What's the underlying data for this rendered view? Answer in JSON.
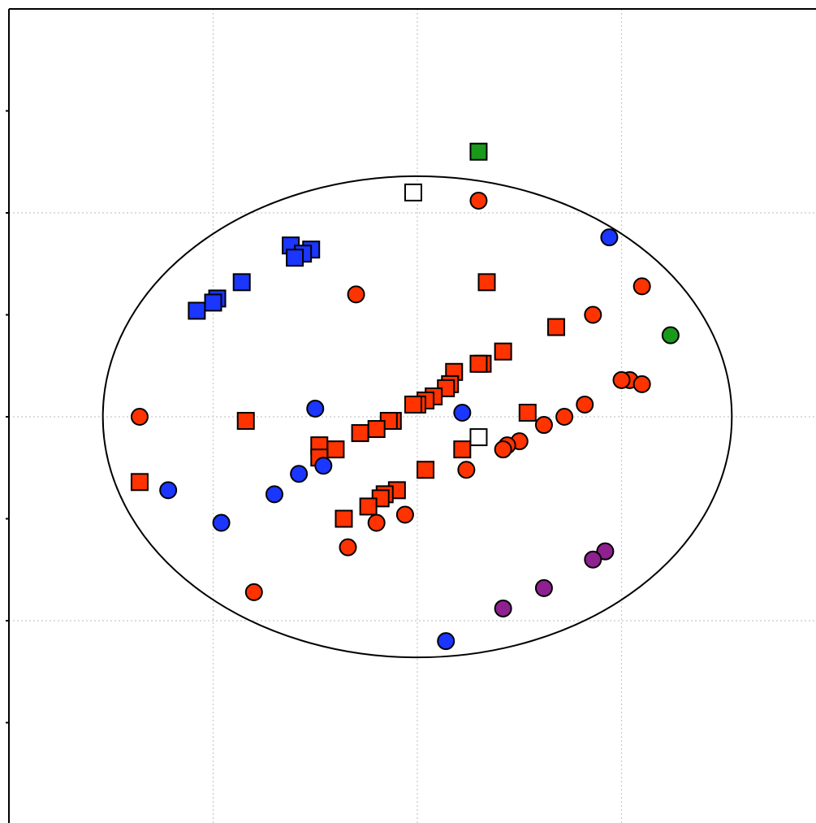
{
  "chart_data": {
    "type": "scatter",
    "title": "",
    "xlabel": "",
    "ylabel": "",
    "xlim": [
      -1,
      1
    ],
    "ylim": [
      -1,
      1
    ],
    "grid": true,
    "x_gridlines": [
      -0.5,
      0,
      0.5
    ],
    "y_gridlines": [
      -0.5,
      0,
      0.5
    ],
    "y_ticks": [
      -0.75,
      -0.5,
      -0.25,
      0,
      0.25,
      0.5,
      0.75
    ],
    "confidence_ellipse": {
      "center": [
        0,
        0
      ],
      "semi_axis_x": 0.77,
      "semi_axis_y": 0.59
    },
    "colors": {
      "red": "#ff3300",
      "blue": "#1a36ff",
      "green": "#1a9a1a",
      "purple": "#8e2090",
      "white": "#ffffff"
    },
    "points": [
      {
        "x": 0.15,
        "y": 0.65,
        "shape": "square",
        "color": "green"
      },
      {
        "x": -0.01,
        "y": 0.55,
        "shape": "square",
        "color": "white"
      },
      {
        "x": 0.15,
        "y": 0.53,
        "shape": "circle",
        "color": "red"
      },
      {
        "x": 0.47,
        "y": 0.44,
        "shape": "circle",
        "color": "blue"
      },
      {
        "x": -0.31,
        "y": 0.42,
        "shape": "square",
        "color": "blue"
      },
      {
        "x": -0.26,
        "y": 0.41,
        "shape": "square",
        "color": "blue"
      },
      {
        "x": -0.28,
        "y": 0.4,
        "shape": "square",
        "color": "blue"
      },
      {
        "x": -0.3,
        "y": 0.39,
        "shape": "square",
        "color": "blue"
      },
      {
        "x": -0.43,
        "y": 0.33,
        "shape": "square",
        "color": "blue"
      },
      {
        "x": 0.17,
        "y": 0.33,
        "shape": "square",
        "color": "red"
      },
      {
        "x": 0.55,
        "y": 0.32,
        "shape": "circle",
        "color": "red"
      },
      {
        "x": -0.49,
        "y": 0.29,
        "shape": "square",
        "color": "blue"
      },
      {
        "x": -0.5,
        "y": 0.28,
        "shape": "square",
        "color": "blue"
      },
      {
        "x": -0.15,
        "y": 0.3,
        "shape": "circle",
        "color": "red"
      },
      {
        "x": -0.54,
        "y": 0.26,
        "shape": "square",
        "color": "blue"
      },
      {
        "x": 0.43,
        "y": 0.25,
        "shape": "circle",
        "color": "red"
      },
      {
        "x": 0.34,
        "y": 0.22,
        "shape": "square",
        "color": "red"
      },
      {
        "x": 0.62,
        "y": 0.2,
        "shape": "circle",
        "color": "green"
      },
      {
        "x": 0.21,
        "y": 0.16,
        "shape": "square",
        "color": "red"
      },
      {
        "x": 0.16,
        "y": 0.13,
        "shape": "square",
        "color": "red"
      },
      {
        "x": 0.15,
        "y": 0.13,
        "shape": "square",
        "color": "red"
      },
      {
        "x": 0.09,
        "y": 0.11,
        "shape": "square",
        "color": "red"
      },
      {
        "x": 0.52,
        "y": 0.09,
        "shape": "circle",
        "color": "red"
      },
      {
        "x": 0.5,
        "y": 0.09,
        "shape": "circle",
        "color": "red"
      },
      {
        "x": 0.55,
        "y": 0.08,
        "shape": "circle",
        "color": "red"
      },
      {
        "x": 0.08,
        "y": 0.08,
        "shape": "square",
        "color": "red"
      },
      {
        "x": 0.07,
        "y": 0.07,
        "shape": "square",
        "color": "red"
      },
      {
        "x": 0.04,
        "y": 0.05,
        "shape": "square",
        "color": "red"
      },
      {
        "x": 0.02,
        "y": 0.04,
        "shape": "square",
        "color": "red"
      },
      {
        "x": 0.0,
        "y": 0.03,
        "shape": "square",
        "color": "red"
      },
      {
        "x": -0.01,
        "y": 0.03,
        "shape": "square",
        "color": "red"
      },
      {
        "x": 0.41,
        "y": 0.03,
        "shape": "circle",
        "color": "red"
      },
      {
        "x": -0.25,
        "y": 0.02,
        "shape": "circle",
        "color": "blue"
      },
      {
        "x": 0.11,
        "y": 0.01,
        "shape": "circle",
        "color": "blue"
      },
      {
        "x": 0.27,
        "y": 0.01,
        "shape": "square",
        "color": "red"
      },
      {
        "x": -0.68,
        "y": 0.0,
        "shape": "circle",
        "color": "red"
      },
      {
        "x": 0.36,
        "y": 0.0,
        "shape": "circle",
        "color": "red"
      },
      {
        "x": -0.06,
        "y": -0.01,
        "shape": "square",
        "color": "red"
      },
      {
        "x": -0.07,
        "y": -0.01,
        "shape": "square",
        "color": "red"
      },
      {
        "x": -0.42,
        "y": -0.01,
        "shape": "square",
        "color": "red"
      },
      {
        "x": 0.31,
        "y": -0.02,
        "shape": "circle",
        "color": "red"
      },
      {
        "x": -0.1,
        "y": -0.03,
        "shape": "square",
        "color": "red"
      },
      {
        "x": -0.14,
        "y": -0.04,
        "shape": "square",
        "color": "red"
      },
      {
        "x": 0.15,
        "y": -0.05,
        "shape": "square",
        "color": "white"
      },
      {
        "x": 0.25,
        "y": -0.06,
        "shape": "circle",
        "color": "red"
      },
      {
        "x": 0.22,
        "y": -0.07,
        "shape": "circle",
        "color": "red"
      },
      {
        "x": 0.21,
        "y": -0.08,
        "shape": "circle",
        "color": "red"
      },
      {
        "x": -0.24,
        "y": -0.07,
        "shape": "square",
        "color": "red"
      },
      {
        "x": -0.2,
        "y": -0.08,
        "shape": "square",
        "color": "red"
      },
      {
        "x": 0.11,
        "y": -0.08,
        "shape": "square",
        "color": "red"
      },
      {
        "x": -0.24,
        "y": -0.1,
        "shape": "square",
        "color": "red"
      },
      {
        "x": -0.23,
        "y": -0.12,
        "shape": "circle",
        "color": "blue"
      },
      {
        "x": -0.29,
        "y": -0.14,
        "shape": "circle",
        "color": "blue"
      },
      {
        "x": 0.02,
        "y": -0.13,
        "shape": "square",
        "color": "red"
      },
      {
        "x": 0.12,
        "y": -0.13,
        "shape": "circle",
        "color": "red"
      },
      {
        "x": -0.68,
        "y": -0.16,
        "shape": "square",
        "color": "red"
      },
      {
        "x": -0.61,
        "y": -0.18,
        "shape": "circle",
        "color": "blue"
      },
      {
        "x": -0.05,
        "y": -0.18,
        "shape": "square",
        "color": "red"
      },
      {
        "x": -0.08,
        "y": -0.19,
        "shape": "square",
        "color": "red"
      },
      {
        "x": -0.09,
        "y": -0.2,
        "shape": "square",
        "color": "red"
      },
      {
        "x": -0.35,
        "y": -0.19,
        "shape": "circle",
        "color": "blue"
      },
      {
        "x": -0.12,
        "y": -0.22,
        "shape": "square",
        "color": "red"
      },
      {
        "x": -0.18,
        "y": -0.25,
        "shape": "square",
        "color": "red"
      },
      {
        "x": -0.03,
        "y": -0.24,
        "shape": "circle",
        "color": "red"
      },
      {
        "x": -0.1,
        "y": -0.26,
        "shape": "circle",
        "color": "red"
      },
      {
        "x": -0.48,
        "y": -0.26,
        "shape": "circle",
        "color": "blue"
      },
      {
        "x": -0.17,
        "y": -0.32,
        "shape": "circle",
        "color": "red"
      },
      {
        "x": 0.46,
        "y": -0.33,
        "shape": "circle",
        "color": "purple"
      },
      {
        "x": 0.43,
        "y": -0.35,
        "shape": "circle",
        "color": "purple"
      },
      {
        "x": 0.31,
        "y": -0.42,
        "shape": "circle",
        "color": "purple"
      },
      {
        "x": -0.4,
        "y": -0.43,
        "shape": "circle",
        "color": "red"
      },
      {
        "x": 0.21,
        "y": -0.47,
        "shape": "circle",
        "color": "purple"
      },
      {
        "x": 0.07,
        "y": -0.55,
        "shape": "circle",
        "color": "blue"
      }
    ]
  }
}
